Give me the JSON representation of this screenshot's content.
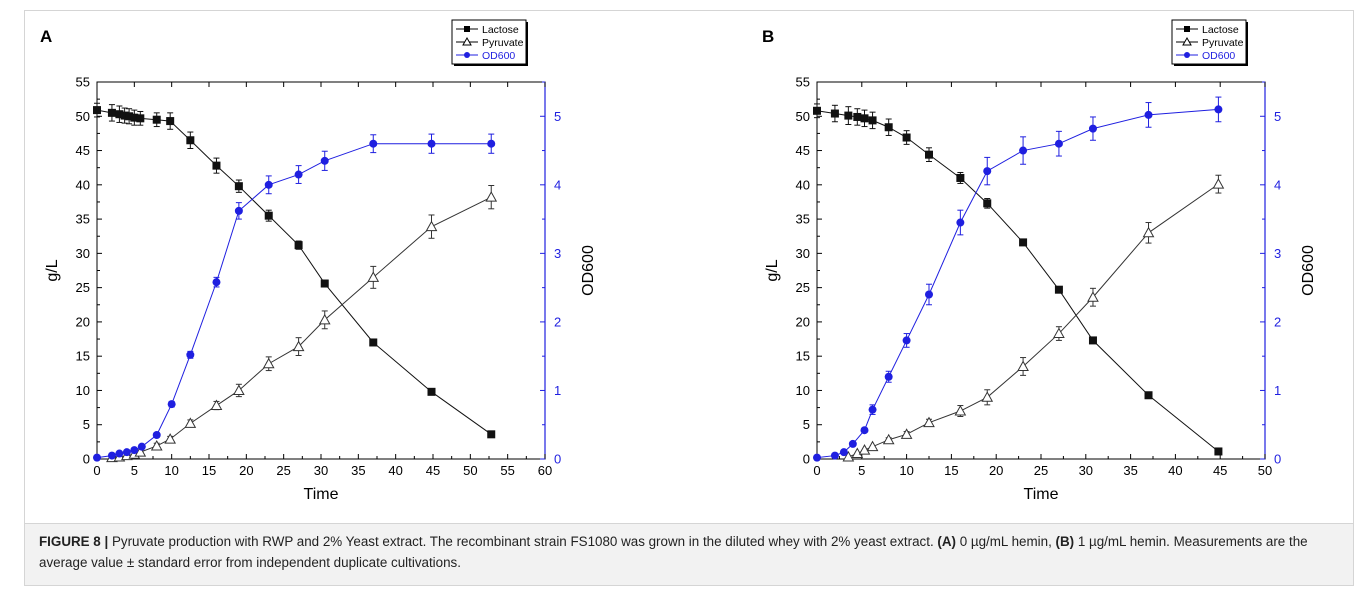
{
  "figure_label": "FIGURE 8 |",
  "caption_parts": [
    {
      "text": " Pyruvate production with RWP and 2% Yeast extract. The recombinant strain FS1080 was grown in the diluted whey with 2% yeast extract. ",
      "bold": false
    },
    {
      "text": "(A)",
      "bold": true
    },
    {
      "text": " 0 µg/mL hemin, ",
      "bold": false
    },
    {
      "text": "(B)",
      "bold": true
    },
    {
      "text": " 1 µg/mL hemin. Measurements are the average value ± standard error from independent duplicate cultivations.",
      "bold": false
    }
  ],
  "colors": {
    "lactose": "#111111",
    "pyruvate": "#333333",
    "od600": "#1f1fe0",
    "right_axis": "#1f1fe0",
    "axis": "#000000"
  },
  "chart_data": [
    {
      "type": "line",
      "panel_label": "A",
      "xlabel": "Time",
      "ylabel": "g/L",
      "y2label": "OD600",
      "xlim": [
        0,
        60
      ],
      "xticks": [
        0,
        5,
        10,
        15,
        20,
        25,
        30,
        35,
        40,
        45,
        50,
        55,
        60
      ],
      "ylim": [
        0,
        55
      ],
      "yticks": [
        0,
        5,
        10,
        15,
        20,
        25,
        30,
        35,
        40,
        45,
        50,
        55
      ],
      "y2lim": [
        0,
        5.5
      ],
      "y2ticks": [
        0,
        1,
        2,
        3,
        4,
        5
      ],
      "legend": "top-right",
      "series": [
        {
          "name": "Lactose",
          "axis": "left",
          "marker": "filled-square",
          "x": [
            0,
            2,
            3,
            3.7,
            4.3,
            5,
            5.8,
            8,
            9.8,
            12.5,
            16,
            19,
            23,
            27,
            30.5,
            37,
            44.8,
            52.8
          ],
          "y": [
            50.9,
            50.5,
            50.3,
            50.1,
            50.0,
            49.8,
            49.7,
            49.5,
            49.3,
            46.5,
            42.8,
            39.8,
            35.5,
            31.2,
            25.6,
            17.0,
            9.8,
            3.6
          ],
          "err": [
            1.0,
            1.2,
            1.2,
            1.1,
            1.1,
            1.1,
            1.0,
            1.0,
            1.2,
            1.2,
            1.1,
            0.9,
            0.8,
            0.6,
            0.4,
            0,
            0,
            0
          ]
        },
        {
          "name": "Pyruvate",
          "axis": "left",
          "marker": "open-triangle",
          "x": [
            2,
            3,
            4,
            5,
            5.8,
            8,
            9.8,
            12.5,
            16,
            19,
            23,
            27,
            30.5,
            37,
            44.8,
            52.8
          ],
          "y": [
            0.2,
            0.3,
            0.5,
            0.7,
            1.0,
            1.9,
            2.9,
            5.2,
            7.8,
            10.0,
            13.9,
            16.4,
            20.3,
            26.5,
            33.9,
            38.2
          ],
          "err": [
            0,
            0,
            0,
            0,
            0.3,
            0.4,
            0.4,
            0.5,
            0.6,
            0.9,
            1.0,
            1.3,
            1.3,
            1.6,
            1.7,
            1.7
          ]
        },
        {
          "name": "OD600",
          "axis": "right",
          "marker": "filled-circle",
          "x": [
            0,
            2,
            3,
            4,
            5,
            6,
            8,
            10,
            12.5,
            16,
            19,
            23,
            27,
            30.5,
            37,
            44.8,
            52.8
          ],
          "y": [
            0.02,
            0.05,
            0.08,
            0.1,
            0.13,
            0.18,
            0.35,
            0.8,
            1.52,
            2.58,
            3.62,
            4.0,
            4.15,
            4.35,
            4.6,
            4.6,
            4.6
          ],
          "err": [
            0,
            0,
            0,
            0,
            0,
            0,
            0,
            0.04,
            0.05,
            0.07,
            0.12,
            0.13,
            0.13,
            0.14,
            0.13,
            0.14,
            0.14
          ]
        }
      ]
    },
    {
      "type": "line",
      "panel_label": "B",
      "xlabel": "Time",
      "ylabel": "g/L",
      "y2label": "OD600",
      "xlim": [
        0,
        50
      ],
      "xticks": [
        0,
        5,
        10,
        15,
        20,
        25,
        30,
        35,
        40,
        45,
        50
      ],
      "ylim": [
        0,
        55
      ],
      "yticks": [
        0,
        5,
        10,
        15,
        20,
        25,
        30,
        35,
        40,
        45,
        50,
        55
      ],
      "y2lim": [
        0,
        5.5
      ],
      "y2ticks": [
        0,
        1,
        2,
        3,
        4,
        5
      ],
      "legend": "top-right",
      "series": [
        {
          "name": "Lactose",
          "axis": "left",
          "marker": "filled-square",
          "x": [
            0,
            2,
            3.5,
            4.5,
            5.3,
            6.2,
            8,
            10,
            12.5,
            16,
            19,
            23,
            27,
            30.8,
            37,
            44.8
          ],
          "y": [
            50.8,
            50.4,
            50.1,
            49.9,
            49.7,
            49.4,
            48.4,
            46.9,
            44.4,
            41.0,
            37.3,
            31.6,
            24.7,
            17.3,
            9.3,
            1.1
          ],
          "err": [
            1.0,
            1.2,
            1.3,
            1.2,
            1.2,
            1.2,
            1.2,
            1.0,
            1.0,
            0.8,
            0.7,
            0.4,
            0,
            0,
            0,
            0
          ]
        },
        {
          "name": "Pyruvate",
          "axis": "left",
          "marker": "open-triangle",
          "x": [
            3.5,
            4.5,
            5.3,
            6.2,
            8,
            10,
            12.5,
            16,
            19,
            23,
            27,
            30.8,
            37,
            44.8
          ],
          "y": [
            0.3,
            0.8,
            1.3,
            1.8,
            2.8,
            3.6,
            5.3,
            7.0,
            9.0,
            13.5,
            18.3,
            23.6,
            33.0,
            40.1
          ],
          "err": [
            0,
            0,
            0,
            0,
            0.3,
            0.4,
            0.5,
            0.8,
            1.1,
            1.3,
            1.0,
            1.3,
            1.5,
            1.3
          ]
        },
        {
          "name": "OD600",
          "axis": "right",
          "marker": "filled-circle",
          "x": [
            0,
            2,
            3,
            4,
            5.3,
            6.2,
            8,
            10,
            12.5,
            16,
            19,
            23,
            27,
            30.8,
            37,
            44.8
          ],
          "y": [
            0.02,
            0.05,
            0.1,
            0.22,
            0.42,
            0.72,
            1.2,
            1.73,
            2.4,
            3.45,
            4.2,
            4.5,
            4.6,
            4.82,
            5.02,
            5.1
          ],
          "err": [
            0,
            0,
            0,
            0,
            0,
            0.07,
            0.08,
            0.1,
            0.15,
            0.18,
            0.2,
            0.2,
            0.18,
            0.17,
            0.18,
            0.18
          ]
        }
      ]
    }
  ]
}
